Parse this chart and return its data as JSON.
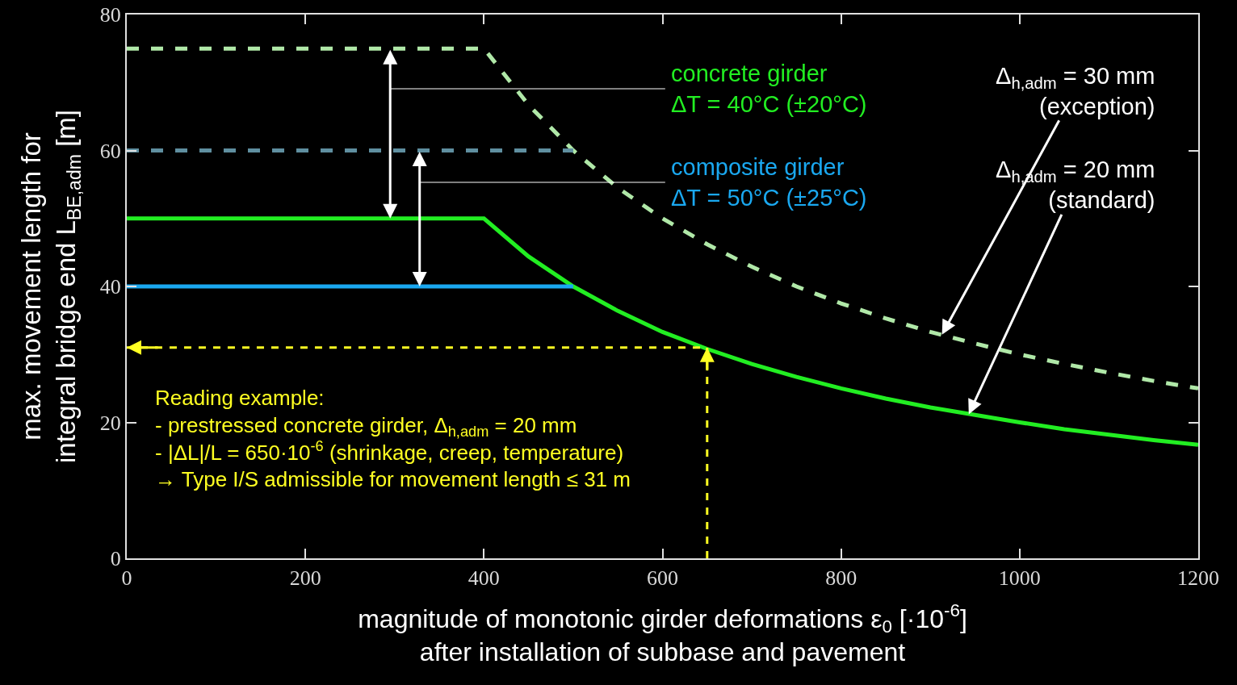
{
  "chart_data": {
    "type": "line",
    "ylabel": "max. movement length for\nintegral bridge end L$_{BE,adm}$ [m]",
    "xlabel": "magnitude of monotonic girder deformations ε$_{0}$ [·10$^{-6}$]\nafter installation of subbase and pavement",
    "xlim": [
      0,
      1200
    ],
    "ylim": [
      0,
      80
    ],
    "xticks": [
      0,
      200,
      400,
      600,
      800,
      1000,
      1200
    ],
    "yticks": [
      0,
      20,
      40,
      60,
      80
    ],
    "marker": "none",
    "series": [
      {
        "color": "#b0e8a8",
        "line_style": "dashed",
        "x": [
          0,
          400,
          450,
          500,
          550,
          600,
          650,
          700,
          750,
          800,
          850,
          900,
          950,
          1000,
          1050,
          1100,
          1150,
          1200
        ],
        "values": [
          75,
          75,
          66.7,
          60,
          54.5,
          50,
          46.2,
          42.9,
          40,
          37.5,
          35.3,
          33.3,
          31.6,
          30,
          28.6,
          27.3,
          26.1,
          25
        ]
      },
      {
        "color": "#22ee22",
        "line_style": "solid",
        "x": [
          0,
          400,
          450,
          500,
          550,
          600,
          650,
          700,
          750,
          800,
          850,
          900,
          950,
          1000,
          1050,
          1100,
          1150,
          1200
        ],
        "values": [
          50,
          50,
          44.4,
          40,
          36.4,
          33.3,
          30.8,
          28.6,
          26.7,
          25,
          23.5,
          22.2,
          21.1,
          20,
          19,
          18.2,
          17.4,
          16.7
        ]
      },
      {
        "color": "#5f8fa0",
        "line_style": "dashed",
        "x": [
          0,
          500
        ],
        "values": [
          60,
          60
        ]
      },
      {
        "color": "#1aa8f0",
        "line_style": "solid",
        "x": [
          0,
          500
        ],
        "values": [
          40,
          40
        ]
      },
      {
        "color": "#ffff22",
        "line_style": "dashed",
        "x": [
          650,
          650,
          0
        ],
        "values": [
          0,
          31,
          31
        ]
      }
    ],
    "annotations": [
      "concrete girder\nΔT = 40°C (±20°C)",
      "composite girder\nΔT = 50°C (±25°C)",
      {
        "text": "Δ$_{h,adm}$ = 30 mm\n(exception)",
        "x": 913,
        "y": 32.9
      },
      {
        "text": "Δ$_{h,adm}$ = 20 mm\n(standard)",
        "x": 943,
        "y": 21.2
      },
      "Reading example:\n- prestressed concrete girder, Δ$_{h,adm}$ = 20 mm\n- |ΔL|/L = 650·10$^{-6}$ (shrinkage, creep, temperature)\n→ Type I/S admissible for movement length ≤ 31 m"
    ]
  }
}
